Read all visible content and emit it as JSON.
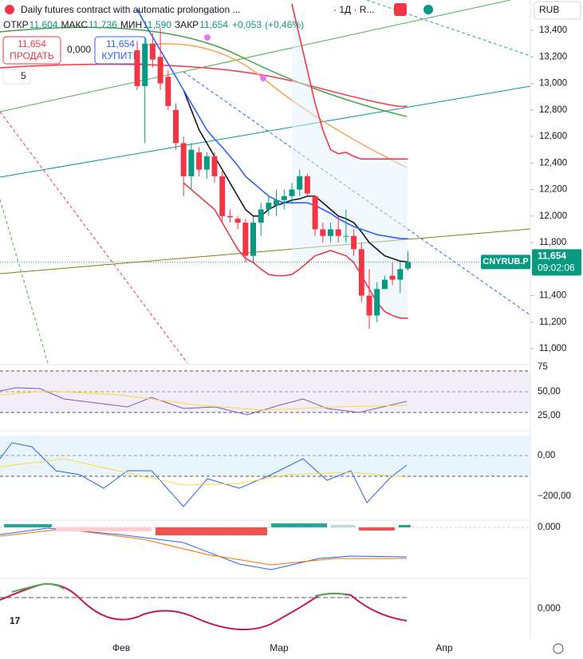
{
  "chart_data": {
    "type": "candlestick",
    "title": "Daily futures contract with automatic prolongation ...",
    "interval": "· 1Д · R...",
    "currency": "RUB",
    "ohlc_labels": [
      "ОТКР",
      "МАКС",
      "МИН",
      "ЗАКР"
    ],
    "ohlc_values": [
      "11,604",
      "11,736",
      "11,590",
      "11,654"
    ],
    "change": "+0,053",
    "change_pct": "(+0,46%)",
    "sell": {
      "price": "11,654",
      "label": "ПРОДАТЬ"
    },
    "spread": "0,000",
    "buy": {
      "price": "11,654",
      "label": "КУПИТЬ"
    },
    "indicators_count": "5",
    "symbol": "CNYRUB.P",
    "last_price": "11,654",
    "countdown": "09:02:06",
    "date_labels": [
      "Фев",
      "Мар",
      "Апр"
    ],
    "ylim": [
      10892,
      13629
    ],
    "yticks": [
      {
        "value": 13400,
        "label": "13,400"
      },
      {
        "value": 13200,
        "label": "13,200"
      },
      {
        "value": 13000,
        "label": "13,000"
      },
      {
        "value": 12800,
        "label": "12,800"
      },
      {
        "value": 12600,
        "label": "12,600"
      },
      {
        "value": 12400,
        "label": "12,400"
      },
      {
        "value": 12200,
        "label": "12,200"
      },
      {
        "value": 12000,
        "label": "12,000"
      },
      {
        "value": 11800,
        "label": "11,800"
      },
      {
        "value": 11600,
        "label": "11,600"
      },
      {
        "value": 11400,
        "label": "11,400"
      },
      {
        "value": 11200,
        "label": "11,200"
      },
      {
        "value": 11000,
        "label": "11,000"
      }
    ],
    "last": 11654,
    "up_color": "#089981",
    "down_color": "#f23645",
    "open": [
      13250,
      12980,
      13300,
      13200,
      13050,
      12800,
      12550,
      12300,
      12480,
      12350,
      12450,
      12300,
      12000,
      11980,
      11950,
      11700,
      11950,
      12050,
      12080,
      12120,
      12150,
      12200,
      12300,
      12150,
      11900,
      11850,
      11900,
      11850,
      11850,
      11750,
      11400,
      11250,
      11450,
      11550,
      11520,
      11604
    ],
    "high": [
      13320,
      13350,
      13380,
      13420,
      13100,
      12850,
      12600,
      12550,
      12520,
      12480,
      12480,
      12350,
      12050,
      12000,
      11980,
      12000,
      12100,
      12150,
      12200,
      12200,
      12250,
      12350,
      12320,
      12150,
      11950,
      11950,
      12000,
      12050,
      11900,
      11800,
      11600,
      11500,
      11550,
      11650,
      11650,
      11736
    ],
    "low": [
      12950,
      12550,
      13120,
      12950,
      12800,
      12500,
      12150,
      12200,
      12300,
      12280,
      12250,
      11950,
      11950,
      11900,
      11650,
      11650,
      11850,
      12000,
      12000,
      12050,
      12100,
      12150,
      12150,
      11850,
      11800,
      11800,
      11800,
      11800,
      11700,
      11350,
      11150,
      11200,
      11450,
      11480,
      11420,
      11590
    ],
    "close": [
      12980,
      13300,
      13180,
      13000,
      12830,
      12550,
      12300,
      12500,
      12350,
      12450,
      12300,
      12000,
      11990,
      11950,
      11700,
      11950,
      12050,
      12100,
      12120,
      12150,
      12200,
      12300,
      12170,
      11900,
      11850,
      11900,
      11850,
      11850,
      11750,
      11400,
      11250,
      11450,
      11520,
      11520,
      11600,
      11654
    ],
    "series": [
      {
        "name": "MA black",
        "color": "#131722",
        "values": [
          null,
          null,
          null,
          null,
          null,
          null,
          12950,
          12800,
          12650,
          12550,
          12450,
          12350,
          12250,
          12150,
          12050,
          12000,
          12000,
          12050,
          12080,
          12100,
          12120,
          12130,
          12150,
          12150,
          12100,
          12050,
          12000,
          11980,
          11950,
          11880,
          11800,
          11750,
          11700,
          11680,
          11660,
          11654
        ]
      },
      {
        "name": "MA blue",
        "color": "#2962ff",
        "values": [
          13560,
          13450,
          13350,
          13250,
          13150,
          13050,
          12950,
          12850,
          12750,
          12650,
          12580,
          12520,
          12450,
          12380,
          12300,
          12250,
          12200,
          12150,
          12120,
          12100,
          12100,
          12100,
          12100,
          12080,
          12050,
          12020,
          11980,
          11950,
          11920,
          11900,
          11880,
          11860,
          11850,
          11840,
          11830,
          11830
        ]
      },
      {
        "name": "Band upper",
        "color": "#f23645",
        "values": [
          null,
          null,
          null,
          null,
          null,
          null,
          null,
          null,
          null,
          null,
          null,
          null,
          null,
          null,
          null,
          null,
          null,
          null,
          null,
          null,
          13600,
          13350,
          13100,
          12850,
          12650,
          12500,
          12470,
          12480,
          12450,
          12430,
          12430,
          12430,
          12430,
          12430,
          12430,
          12430
        ]
      },
      {
        "name": "Band lower",
        "color": "#f23645",
        "values": [
          null,
          null,
          null,
          null,
          null,
          null,
          12250,
          12200,
          12150,
          12100,
          12050,
          11950,
          11850,
          11750,
          11680,
          11650,
          11600,
          11560,
          11550,
          11550,
          11560,
          11600,
          11650,
          11700,
          11720,
          11740,
          11720,
          11700,
          11650,
          11550,
          11450,
          11350,
          11280,
          11250,
          11230,
          11230
        ]
      }
    ],
    "rsi_ticks": [
      "75",
      "50,00",
      "25,00"
    ],
    "cci_ticks": [
      "0,00",
      "−200,00"
    ],
    "macd_ticks": [
      "0,000"
    ],
    "osc_ticks": [
      "0,000"
    ]
  }
}
